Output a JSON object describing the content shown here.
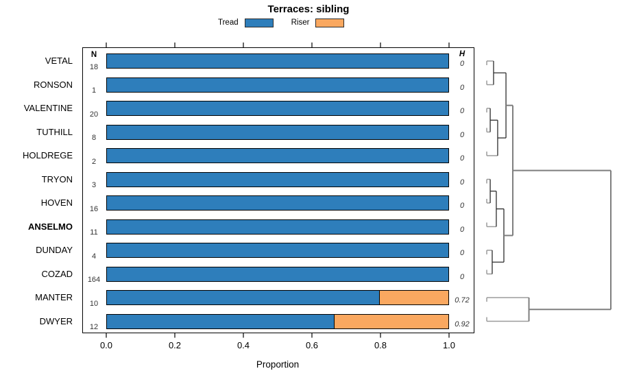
{
  "chart_data": {
    "type": "bar",
    "orientation": "horizontal",
    "stacked": true,
    "title": "Terraces: sibling",
    "xlabel": "Proportion",
    "xlim": [
      0,
      1
    ],
    "xticks": [
      0.0,
      0.2,
      0.4,
      0.6,
      0.8,
      1.0
    ],
    "xtick_labels": [
      "0.0",
      "0.2",
      "0.4",
      "0.6",
      "0.8",
      "1.0"
    ],
    "grid": false,
    "legend_position": "top",
    "n_header": "N",
    "h_header": "H",
    "categories": [
      "VETAL",
      "RONSON",
      "VALENTINE",
      "TUTHILL",
      "HOLDREGE",
      "TRYON",
      "HOVEN",
      "ANSELMO",
      "DUNDAY",
      "COZAD",
      "MANTER",
      "DWYER"
    ],
    "emphasized_category": "ANSELMO",
    "n_values": [
      18,
      1,
      20,
      8,
      2,
      3,
      16,
      11,
      4,
      164,
      10,
      12
    ],
    "h_values": [
      "0",
      "0",
      "0",
      "0",
      "0",
      "0",
      "0",
      "0",
      "0",
      "0",
      "0.72",
      "0.92"
    ],
    "series": [
      {
        "name": "Tread",
        "color": "#2E7EBB",
        "values": [
          1,
          1,
          1,
          1,
          1,
          1,
          1,
          1,
          1,
          1,
          0.8,
          0.667
        ]
      },
      {
        "name": "Riser",
        "color": "#FAA860",
        "values": [
          0,
          0,
          0,
          0,
          0,
          0,
          0,
          0,
          0,
          0,
          0.2,
          0.333
        ]
      }
    ],
    "bar_border_color": "#000000",
    "dendrogram": {
      "side": "right",
      "leaf_order": [
        "VETAL",
        "RONSON",
        "VALENTINE",
        "TUTHILL",
        "HOLDREGE",
        "TRYON",
        "HOVEN",
        "ANSELMO",
        "DUNDAY",
        "COZAD",
        "MANTER",
        "DWYER"
      ],
      "merges": [
        {
          "id": "m1",
          "children": [
            "VETAL",
            "RONSON"
          ],
          "height": 0.055
        },
        {
          "id": "m2",
          "children": [
            "VALENTINE",
            "TUTHILL"
          ],
          "height": 0.028
        },
        {
          "id": "m3",
          "children": [
            "m2",
            "HOLDREGE"
          ],
          "height": 0.088
        },
        {
          "id": "m4",
          "children": [
            "m1",
            "m3"
          ],
          "height": 0.155
        },
        {
          "id": "m5",
          "children": [
            "TRYON",
            "HOVEN"
          ],
          "height": 0.028
        },
        {
          "id": "m6",
          "children": [
            "m5",
            "ANSELMO"
          ],
          "height": 0.077
        },
        {
          "id": "m7",
          "children": [
            "DUNDAY",
            "COZAD"
          ],
          "height": 0.044
        },
        {
          "id": "m8",
          "children": [
            "m6",
            "m7"
          ],
          "height": 0.138
        },
        {
          "id": "m9",
          "children": [
            "m4",
            "m8"
          ],
          "height": 0.21
        },
        {
          "id": "m10",
          "children": [
            "MANTER",
            "DWYER"
          ],
          "height": 0.34
        },
        {
          "id": "m11",
          "children": [
            "m9",
            "m10"
          ],
          "height": 1.0
        }
      ]
    }
  }
}
